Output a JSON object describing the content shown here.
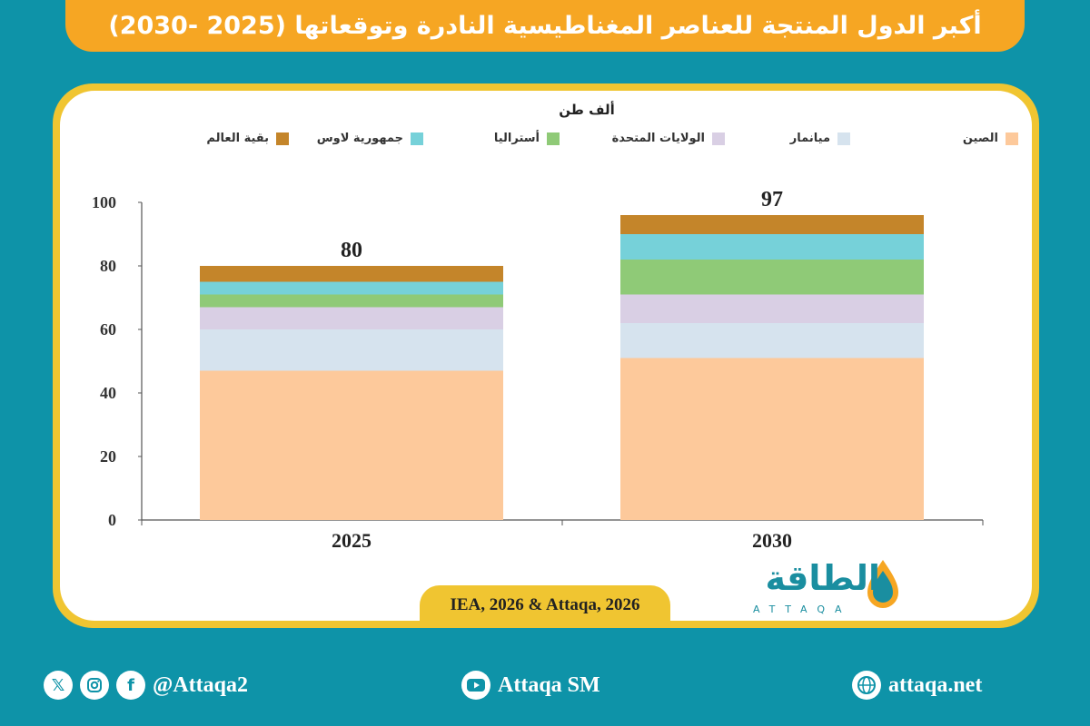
{
  "title": "أكبر الدول المنتجة للعناصر المغناطيسية النادرة وتوقعاتها (2025 -2030)",
  "chart_data": {
    "type": "bar",
    "stacked": true,
    "unit_label": "ألف طن",
    "categories": [
      "2025",
      "2030"
    ],
    "totals": [
      "80",
      "97"
    ],
    "ylim": [
      0,
      100
    ],
    "yticks": [
      "0",
      "20",
      "40",
      "60",
      "80",
      "100"
    ],
    "series": [
      {
        "name": "الصين",
        "color": "#fdc99b",
        "values": [
          47,
          51
        ]
      },
      {
        "name": "ميانمار",
        "color": "#d6e3ee",
        "values": [
          13,
          11
        ]
      },
      {
        "name": "الولايات المتحدة",
        "color": "#d9cfe4",
        "values": [
          7,
          9
        ]
      },
      {
        "name": "أستراليا",
        "color": "#8fca77",
        "values": [
          4,
          11
        ]
      },
      {
        "name": "جمهورية لاوس",
        "color": "#76d1d9",
        "values": [
          4,
          8
        ]
      },
      {
        "name": "بقية العالم",
        "color": "#c4852a",
        "values": [
          5,
          6
        ]
      }
    ],
    "grid": false,
    "legend_position": "top"
  },
  "source": "IEA, 2026 & Attaqa, 2026",
  "logo": {
    "arabic": "الطاقة",
    "english": "ATTAQA"
  },
  "footer": {
    "social_handle": "@Attaqa2",
    "youtube_label": "Attaqa SM",
    "website": "attaqa.net",
    "icons": [
      "x-icon",
      "instagram-icon",
      "facebook-icon",
      "youtube-icon",
      "globe-icon"
    ]
  }
}
